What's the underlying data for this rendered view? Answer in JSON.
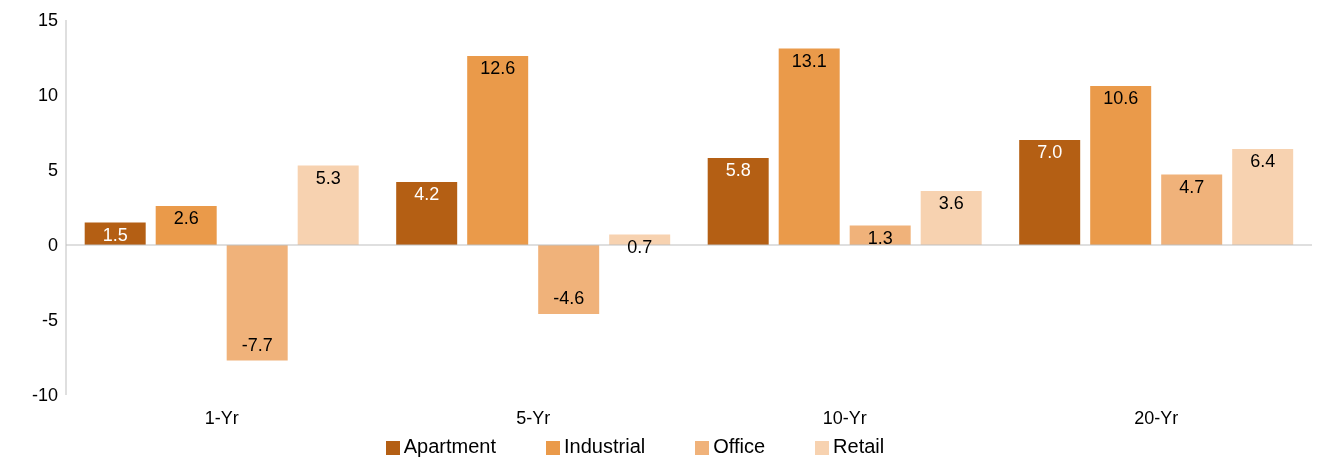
{
  "chart_data": {
    "type": "bar",
    "categories": [
      "1-Yr",
      "5-Yr",
      "10-Yr",
      "20-Yr"
    ],
    "series": [
      {
        "name": "Apartment",
        "color": "#b45f14",
        "values": [
          1.5,
          4.2,
          5.8,
          7.0
        ],
        "value_labels": [
          "1.5",
          "4.2",
          "5.8",
          "7.0"
        ]
      },
      {
        "name": "Industrial",
        "color": "#ea9a4a",
        "values": [
          2.6,
          12.6,
          13.1,
          10.6
        ],
        "value_labels": [
          "2.6",
          "12.6",
          "13.1",
          "10.6"
        ]
      },
      {
        "name": "Office",
        "color": "#f0b27a",
        "values": [
          -7.7,
          -4.6,
          1.3,
          4.7
        ],
        "value_labels": [
          "-7.7",
          "-4.6",
          "1.3",
          "4.7"
        ]
      },
      {
        "name": "Retail",
        "color": "#f7d2b0",
        "values": [
          5.3,
          0.7,
          3.6,
          6.4
        ],
        "value_labels": [
          "5.3",
          "0.7",
          "3.6",
          "6.4"
        ]
      }
    ],
    "ylim": [
      -10,
      15
    ],
    "yticks": [
      -10,
      -5,
      0,
      5,
      10,
      15
    ],
    "legend": "bottom"
  }
}
